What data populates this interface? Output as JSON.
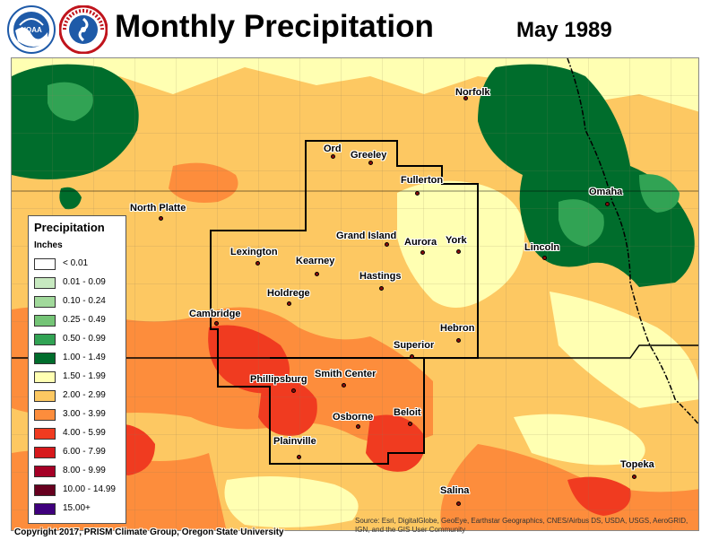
{
  "header": {
    "title": "Monthly Precipitation",
    "date": "May 1989",
    "logos": [
      "noaa-logo",
      "national-weather-service-logo"
    ],
    "logo_text": {
      "nws": "NATIONAL WEATHER SERVICE",
      "noaa": "NOAA"
    }
  },
  "legend": {
    "title": "Precipitation",
    "units": "Inches",
    "items": [
      {
        "label": "< 0.01",
        "color": "#ffffff"
      },
      {
        "label": "0.01 - 0.09",
        "color": "#c7e9c0"
      },
      {
        "label": "0.10 - 0.24",
        "color": "#a1d99b"
      },
      {
        "label": "0.25 - 0.49",
        "color": "#74c476"
      },
      {
        "label": "0.50 - 0.99",
        "color": "#31a354"
      },
      {
        "label": "1.00 - 1.49",
        "color": "#006d2c"
      },
      {
        "label": "1.50 - 1.99",
        "color": "#ffffb2"
      },
      {
        "label": "2.00 - 2.99",
        "color": "#fdc862"
      },
      {
        "label": "3.00 - 3.99",
        "color": "#fd8d3c"
      },
      {
        "label": "4.00 - 5.99",
        "color": "#f03b20"
      },
      {
        "label": "6.00 - 7.99",
        "color": "#d7191c"
      },
      {
        "label": "8.00 - 9.99",
        "color": "#a50026"
      },
      {
        "label": "10.00 - 14.99",
        "color": "#67001f"
      },
      {
        "label": "15.00+",
        "color": "#3f007d"
      }
    ]
  },
  "cities": [
    {
      "name": "Norfolk"
    },
    {
      "name": "Ord"
    },
    {
      "name": "Greeley"
    },
    {
      "name": "Fullerton"
    },
    {
      "name": "North Platte"
    },
    {
      "name": "Omaha"
    },
    {
      "name": "Grand Island"
    },
    {
      "name": "Aurora"
    },
    {
      "name": "York"
    },
    {
      "name": "Lincoln"
    },
    {
      "name": "Lexington"
    },
    {
      "name": "Kearney"
    },
    {
      "name": "Hastings"
    },
    {
      "name": "Holdrege"
    },
    {
      "name": "Cambridge"
    },
    {
      "name": "Hebron"
    },
    {
      "name": "Superior"
    },
    {
      "name": "Phillipsburg"
    },
    {
      "name": "Smith Center"
    },
    {
      "name": "Osborne"
    },
    {
      "name": "Beloit"
    },
    {
      "name": "Plainville"
    },
    {
      "name": "Topeka"
    },
    {
      "name": "Salina"
    }
  ],
  "footer": {
    "copyright": "Copyright 2017, PRISM Climate Group, Oregon State University",
    "source": "Source: Esri, DigitalGlobe, GeoEye, Earthstar Geographics, CNES/Airbus DS, USDA, USGS, AeroGRID, IGN, and the GIS User Community"
  },
  "colors": {
    "band_1_50": "#ffffb2",
    "band_2_00": "#fdc862",
    "band_3_00": "#fd8d3c",
    "band_4_00": "#f03b20",
    "band_1_00": "#006d2c",
    "band_0_50": "#31a354",
    "county_line": "#8a7a5a",
    "border": "#000000"
  }
}
